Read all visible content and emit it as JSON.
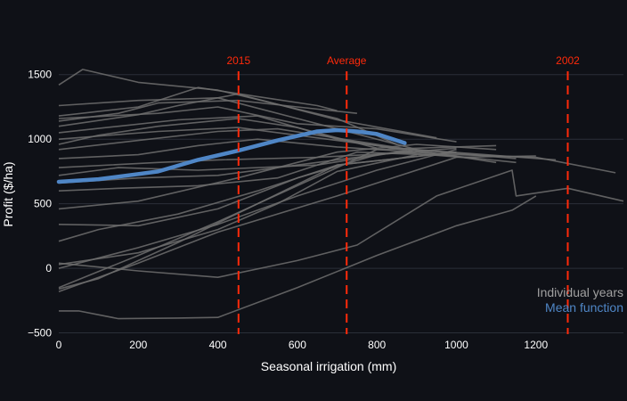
{
  "chart_data": {
    "type": "line",
    "xlabel": "Seasonal irrigation (mm)",
    "ylabel": "Profit ($/ha)",
    "xlim": [
      0,
      1420
    ],
    "ylim": [
      -510,
      1650
    ],
    "x_ticks": [
      0,
      200,
      400,
      600,
      800,
      1000,
      1200
    ],
    "y_ticks": [
      -500,
      0,
      500,
      1000,
      1500
    ],
    "grid": "horizontal",
    "legend": {
      "placement": "bottom-right",
      "entries": [
        {
          "label": "Individual years",
          "color": "#a0a0a0"
        },
        {
          "label": "Mean function",
          "color": "#4f86c6"
        }
      ]
    },
    "vertical_lines": [
      {
        "label": "2015",
        "x": 452
      },
      {
        "label": "Average",
        "x": 724
      },
      {
        "label": "2002",
        "x": 1280
      }
    ],
    "colors": {
      "background": "#0f1117",
      "individual": "#6e6e6e",
      "mean": "#4f86c6",
      "vline": "#ff2a0a",
      "grid": "#2b2f38"
    },
    "series": [
      {
        "name": "Mean function",
        "role": "mean",
        "x": [
          0,
          100,
          200,
          250,
          350,
          450,
          550,
          650,
          700,
          750,
          800,
          870
        ],
        "y": [
          670,
          690,
          730,
          750,
          840,
          910,
          990,
          1060,
          1070,
          1060,
          1040,
          970
        ]
      },
      {
        "role": "year",
        "x": [
          0,
          60,
          200,
          400,
          700,
          850
        ],
        "y": [
          1420,
          1540,
          1440,
          1380,
          1160,
          960
        ]
      },
      {
        "role": "year",
        "x": [
          0,
          200,
          400,
          600,
          800,
          900
        ],
        "y": [
          1260,
          1300,
          1320,
          1160,
          1000,
          920
        ]
      },
      {
        "role": "year",
        "x": [
          0,
          200,
          350,
          500,
          650,
          700
        ],
        "y": [
          1180,
          1250,
          1400,
          1330,
          1260,
          1220
        ]
      },
      {
        "role": "year",
        "x": [
          0,
          150,
          250,
          450,
          600,
          750
        ],
        "y": [
          1140,
          1200,
          1280,
          1300,
          1250,
          1200
        ]
      },
      {
        "role": "year",
        "x": [
          0,
          250,
          400,
          600,
          800,
          1000
        ],
        "y": [
          1160,
          1200,
          1250,
          1120,
          1080,
          980
        ]
      },
      {
        "role": "year",
        "x": [
          0,
          200,
          300,
          450,
          700,
          950
        ],
        "y": [
          1100,
          1190,
          1260,
          1350,
          1150,
          1010
        ]
      },
      {
        "role": "year",
        "x": [
          0,
          150,
          300,
          500,
          700,
          900
        ],
        "y": [
          1050,
          1100,
          1150,
          1180,
          1000,
          900
        ]
      },
      {
        "role": "year",
        "x": [
          0,
          100,
          250,
          450,
          600,
          800
        ],
        "y": [
          960,
          1030,
          1100,
          1160,
          1090,
          930
        ]
      },
      {
        "role": "year",
        "x": [
          0,
          200,
          400,
          550,
          800,
          1100
        ],
        "y": [
          920,
          990,
          1060,
          1080,
          960,
          820
        ]
      },
      {
        "role": "year",
        "x": [
          0,
          250,
          450,
          650,
          850,
          1150
        ],
        "y": [
          1000,
          1060,
          1090,
          1010,
          930,
          850
        ]
      },
      {
        "role": "year",
        "x": [
          0,
          200,
          350,
          500,
          700,
          1000,
          1200,
          1400
        ],
        "y": [
          850,
          880,
          950,
          1000,
          940,
          880,
          860,
          740
        ]
      },
      {
        "role": "year",
        "x": [
          0,
          250,
          400,
          650,
          900,
          1150
        ],
        "y": [
          780,
          820,
          840,
          860,
          900,
          820
        ]
      },
      {
        "role": "year",
        "x": [
          0,
          150,
          350,
          650,
          850,
          1050
        ],
        "y": [
          720,
          780,
          760,
          800,
          900,
          850
        ]
      },
      {
        "role": "year",
        "x": [
          0,
          200,
          400,
          650,
          900,
          1250
        ],
        "y": [
          660,
          700,
          720,
          820,
          920,
          840
        ]
      },
      {
        "role": "year",
        "x": [
          0,
          150,
          350,
          550,
          750,
          1000
        ],
        "y": [
          600,
          620,
          640,
          700,
          900,
          870
        ]
      },
      {
        "role": "year",
        "x": [
          0,
          200,
          450,
          700,
          900,
          1100
        ],
        "y": [
          460,
          520,
          700,
          900,
          960,
          920
        ]
      },
      {
        "role": "year",
        "x": [
          0,
          200,
          400,
          600,
          800,
          1000
        ],
        "y": [
          340,
          330,
          460,
          700,
          880,
          930
        ]
      },
      {
        "role": "year",
        "x": [
          0,
          100,
          300,
          500,
          700,
          1000
        ],
        "y": [
          210,
          300,
          420,
          600,
          800,
          900
        ]
      },
      {
        "role": "year",
        "x": [
          0,
          200,
          400,
          550,
          700,
          900
        ],
        "y": [
          30,
          120,
          300,
          500,
          750,
          880
        ]
      },
      {
        "role": "year",
        "x": [
          0,
          200,
          400,
          600,
          800,
          1000
        ],
        "y": [
          0,
          160,
          340,
          560,
          760,
          920
        ]
      },
      {
        "role": "year",
        "x": [
          0,
          200,
          400,
          700,
          1000,
          1200
        ],
        "y": [
          -180,
          40,
          280,
          560,
          860,
          870
        ]
      },
      {
        "role": "year",
        "x": [
          0,
          200,
          400,
          600,
          800,
          1100
        ],
        "y": [
          -150,
          100,
          360,
          640,
          920,
          950
        ]
      },
      {
        "role": "year",
        "x": [
          0,
          100,
          300,
          500,
          700,
          1000
        ],
        "y": [
          -160,
          -80,
          200,
          500,
          800,
          900
        ]
      },
      {
        "role": "year",
        "x": [
          0,
          200,
          400,
          600,
          750,
          950,
          1140,
          1150,
          1280,
          1420
        ],
        "y": [
          40,
          -20,
          -70,
          60,
          180,
          560,
          760,
          560,
          620,
          520
        ]
      },
      {
        "role": "year",
        "x": [
          0,
          50,
          150,
          300,
          400,
          600,
          800,
          1000,
          1140,
          1200
        ],
        "y": [
          -330,
          -330,
          -390,
          -385,
          -380,
          -150,
          100,
          330,
          450,
          560
        ]
      }
    ]
  }
}
